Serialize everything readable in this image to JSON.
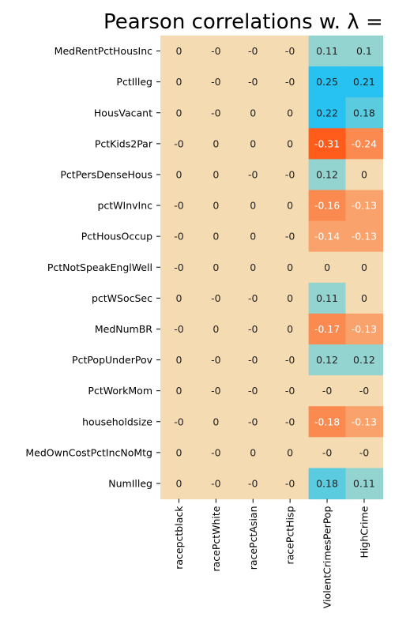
{
  "chart_data": {
    "type": "heatmap",
    "title": "Pearson correlations w. λ =",
    "rows": [
      "MedRentPctHousInc",
      "PctIlleg",
      "HousVacant",
      "PctKids2Par",
      "PctPersDenseHous",
      "pctWInvInc",
      "PctHousOccup",
      "PctNotSpeakEnglWell",
      "pctWSocSec",
      "MedNumBR",
      "PctPopUnderPov",
      "PctWorkMom",
      "householdsize",
      "MedOwnCostPctIncNoMtg",
      "NumIlleg"
    ],
    "columns": [
      "racepctblack",
      "racePctWhite",
      "racePctAsian",
      "racePctHisp",
      "ViolentCrimesPerPop",
      "HighCrime"
    ],
    "labels": [
      [
        "0",
        "-0",
        "-0",
        "-0",
        "0.11",
        "0.1"
      ],
      [
        "0",
        "-0",
        "-0",
        "-0",
        "0.25",
        "0.21"
      ],
      [
        "0",
        "-0",
        "0",
        "0",
        "0.22",
        "0.18"
      ],
      [
        "-0",
        "0",
        "0",
        "0",
        "-0.31",
        "-0.24"
      ],
      [
        "0",
        "0",
        "-0",
        "-0",
        "0.12",
        "0"
      ],
      [
        "-0",
        "0",
        "0",
        "0",
        "-0.16",
        "-0.13"
      ],
      [
        "-0",
        "0",
        "0",
        "-0",
        "-0.14",
        "-0.13"
      ],
      [
        "-0",
        "0",
        "0",
        "0",
        "0",
        "0"
      ],
      [
        "0",
        "-0",
        "-0",
        "0",
        "0.11",
        "0"
      ],
      [
        "-0",
        "0",
        "-0",
        "0",
        "-0.17",
        "-0.13"
      ],
      [
        "0",
        "-0",
        "-0",
        "-0",
        "0.12",
        "0.12"
      ],
      [
        "0",
        "-0",
        "-0",
        "-0",
        "-0",
        "-0"
      ],
      [
        "-0",
        "0",
        "-0",
        "-0",
        "-0.18",
        "-0.13"
      ],
      [
        "0",
        "-0",
        "0",
        "0",
        "-0",
        "-0"
      ],
      [
        "0",
        "-0",
        "-0",
        "-0",
        "0.18",
        "0.11"
      ]
    ],
    "colors": {
      "neutral": "#f5dbb1",
      "pos_weak": "#93d3d0",
      "pos_mid": "#5bcbe0",
      "pos_strong": "#27c1f2",
      "neg_weak": "#f9a26c",
      "neg_mid": "#fb8a50",
      "neg_strong": "#ff5c1c"
    }
  }
}
